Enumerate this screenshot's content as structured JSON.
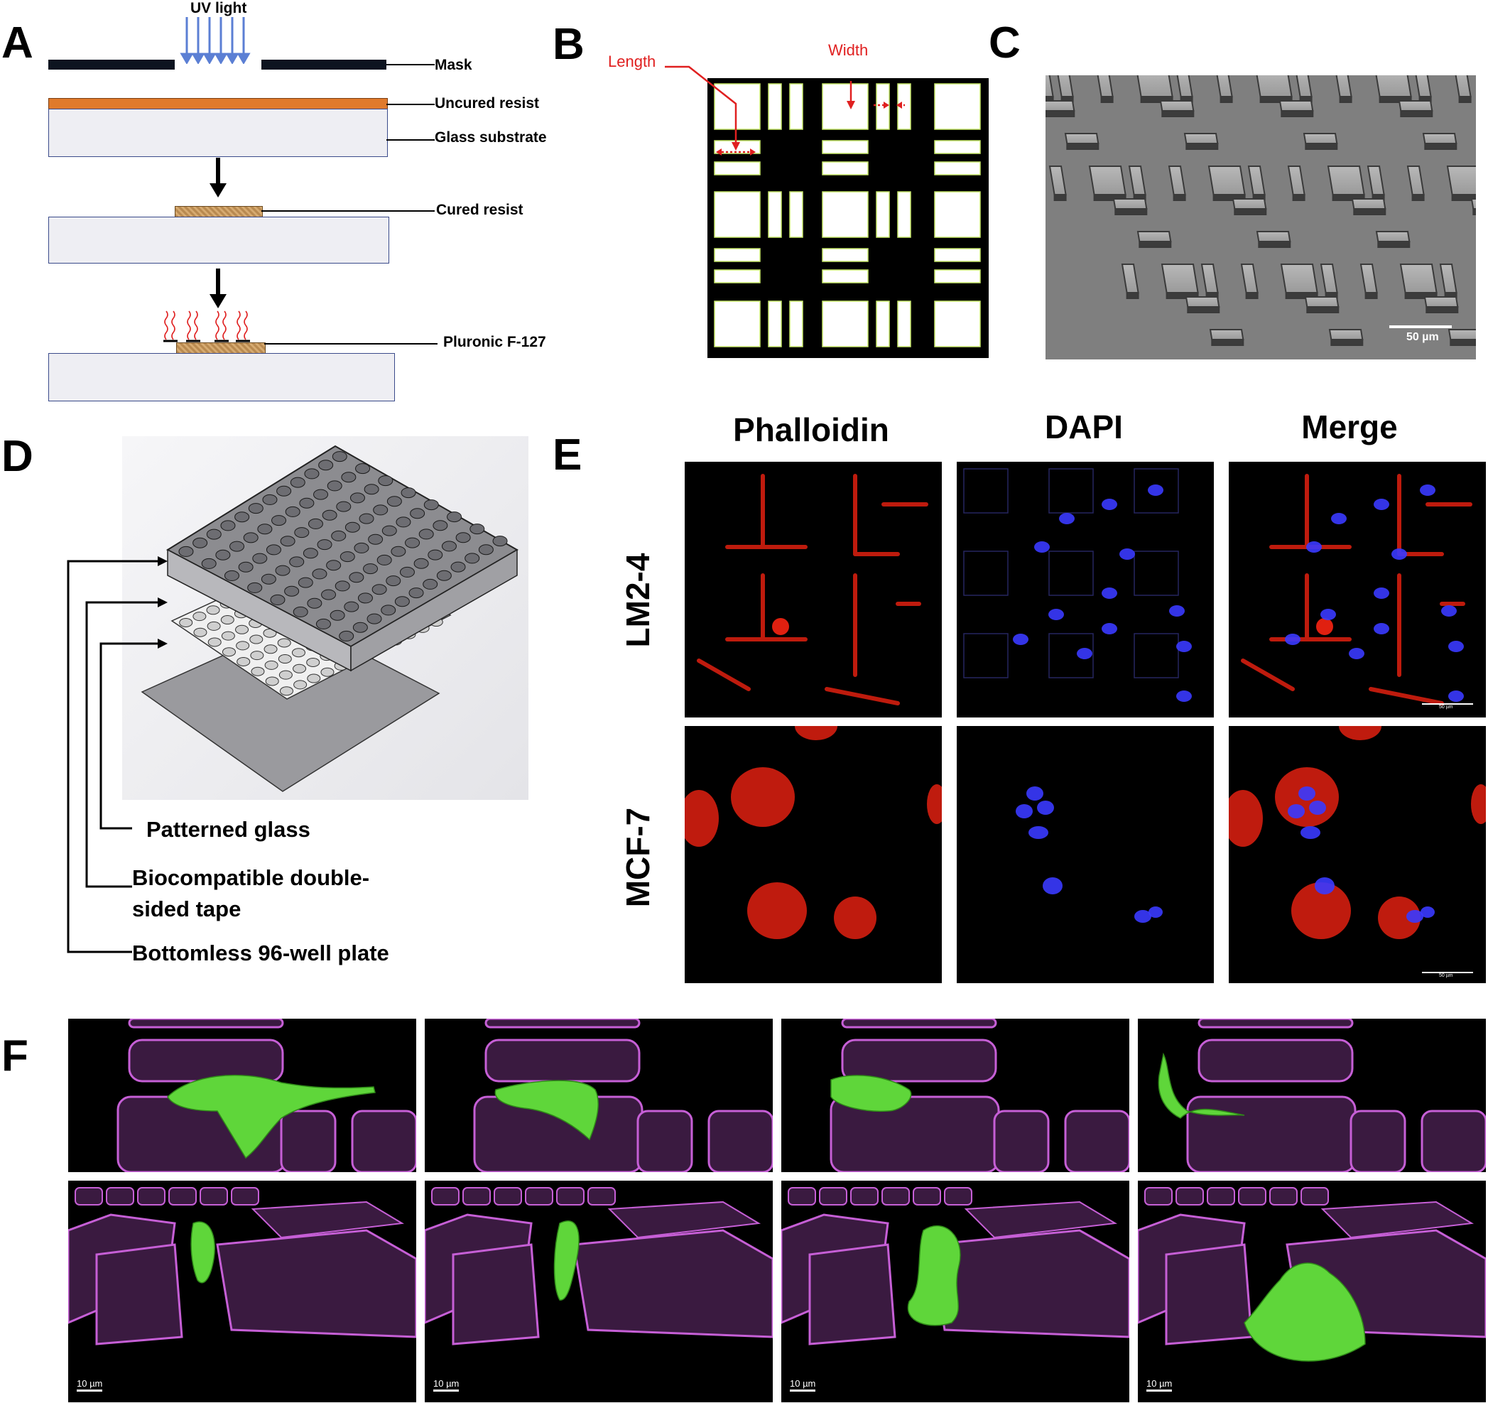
{
  "panels": {
    "a": "A",
    "b": "B",
    "c": "C",
    "d": "D",
    "e": "E",
    "f": "F"
  },
  "panel_a": {
    "uv_light": "UV light",
    "mask": "Mask",
    "uncured_resist": "Uncured resist",
    "glass_substrate": "Glass substrate",
    "cured_resist": "Cured resist",
    "pluronic": "Pluronic F-127"
  },
  "panel_b": {
    "length": "Length",
    "width": "Width"
  },
  "panel_c": {
    "scale": "50 µm"
  },
  "panel_d": {
    "patterned_glass": "Patterned glass",
    "tape_line1": "Biocompatible double-",
    "tape_line2": "sided tape",
    "plate": "Bottomless 96-well plate"
  },
  "panel_e": {
    "columns": [
      "Phalloidin",
      "DAPI",
      "Merge"
    ],
    "rows": [
      "LM2-4",
      "MCF-7"
    ],
    "scale_top": "50 µm",
    "scale_bottom": "50 µm"
  },
  "panel_f": {
    "scale": "10 µm"
  },
  "colors": {
    "resist_orange": "#e07a2c",
    "cured_brown": "#c89a5c",
    "red_label": "#e02020",
    "uv_blue": "#5b7fd4",
    "cell_green": "#5fd63a",
    "pillar_purple": "#c65fd6",
    "nucleus_blue": "#3a3aff",
    "actin_red": "#e02010"
  }
}
